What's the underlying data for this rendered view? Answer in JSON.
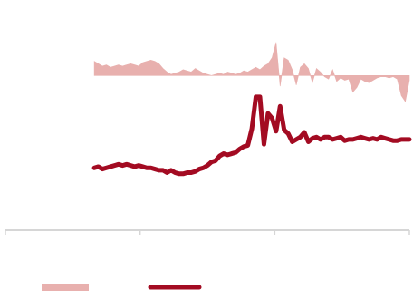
{
  "chart_data": {
    "type": "line",
    "colors": {
      "area": "#e8b0ae",
      "line": "#a30b22",
      "axis": "#d6d6d6"
    },
    "grid": false,
    "legend_position": "bottom-left",
    "x_range": [
      0,
      100
    ],
    "y_range": [
      -10,
      5
    ],
    "x_ticks": [
      0,
      33.33,
      66.67,
      100
    ],
    "tick_labels": [
      "",
      "",
      "",
      ""
    ],
    "series": [
      {
        "type": "area",
        "name": "",
        "x": [
          22,
          23,
          24,
          25,
          26,
          27,
          28,
          29,
          30,
          31,
          32,
          33,
          34,
          35,
          36,
          37,
          38,
          39,
          40,
          41,
          42,
          43,
          44,
          45,
          46,
          47,
          48,
          49,
          50,
          51,
          52,
          53,
          54,
          55,
          56,
          57,
          58,
          59,
          60,
          61,
          62,
          63,
          64,
          65,
          66,
          67,
          68,
          69,
          70,
          71,
          72,
          73,
          74,
          75,
          76,
          77,
          78,
          79,
          80,
          81,
          82,
          83,
          84,
          85,
          86,
          87,
          88,
          89,
          90,
          91,
          92,
          93,
          94,
          95,
          96,
          97,
          98,
          99,
          100
        ],
        "y": [
          1.2,
          1.0,
          0.8,
          0.9,
          0.7,
          0.8,
          0.9,
          0.8,
          0.9,
          1.0,
          0.9,
          0.8,
          1.1,
          1.2,
          1.3,
          1.2,
          1.0,
          0.6,
          0.3,
          0.1,
          0.2,
          0.3,
          0.5,
          0.4,
          0.3,
          0.6,
          0.4,
          0.2,
          0.1,
          0.0,
          0.1,
          0.2,
          0.1,
          0.3,
          0.2,
          0.1,
          0.2,
          0.4,
          0.3,
          0.5,
          0.7,
          0.5,
          0.8,
          1.0,
          1.5,
          2.8,
          -0.9,
          1.5,
          1.3,
          0.5,
          -0.8,
          0.7,
          1.0,
          0.6,
          -0.6,
          0.6,
          0.3,
          -0.1,
          -0.3,
          0.5,
          -0.5,
          -0.2,
          -0.4,
          -0.3,
          -1.4,
          -1.0,
          -0.3,
          -0.5,
          -0.6,
          -0.4,
          -0.2,
          -0.1,
          -0.1,
          -0.2,
          -0.1,
          -0.3,
          -1.7,
          -2.2,
          -0.4
        ]
      },
      {
        "type": "line",
        "name": "",
        "x": [
          22,
          23,
          24,
          25,
          26,
          27,
          28,
          29,
          30,
          31,
          32,
          33,
          34,
          35,
          36,
          37,
          38,
          39,
          40,
          41,
          42,
          43,
          44,
          45,
          46,
          47,
          48,
          49,
          50,
          51,
          52,
          53,
          54,
          55,
          56,
          57,
          58,
          59,
          60,
          61,
          62,
          63,
          64,
          65,
          66,
          67,
          68,
          69,
          70,
          71,
          72,
          73,
          74,
          75,
          76,
          77,
          78,
          79,
          80,
          81,
          82,
          83,
          84,
          85,
          86,
          87,
          88,
          89,
          90,
          91,
          92,
          93,
          94,
          95,
          96,
          97,
          98,
          99,
          100
        ],
        "y": [
          -7.8,
          -7.7,
          -7.9,
          -7.8,
          -7.7,
          -7.6,
          -7.5,
          -7.6,
          -7.5,
          -7.6,
          -7.7,
          -7.6,
          -7.7,
          -7.8,
          -7.8,
          -7.9,
          -8.0,
          -8.0,
          -8.2,
          -8.0,
          -8.2,
          -8.3,
          -8.3,
          -8.2,
          -8.2,
          -8.1,
          -7.9,
          -7.8,
          -7.6,
          -7.3,
          -7.2,
          -6.8,
          -6.6,
          -6.7,
          -6.6,
          -6.5,
          -6.2,
          -6.0,
          -5.9,
          -4.5,
          -1.8,
          -1.8,
          -5.8,
          -3.2,
          -3.6,
          -4.7,
          -2.6,
          -4.6,
          -4.9,
          -5.6,
          -5.4,
          -5.2,
          -4.8,
          -5.6,
          -5.3,
          -5.2,
          -5.4,
          -5.2,
          -5.2,
          -5.4,
          -5.3,
          -5.2,
          -5.5,
          -5.4,
          -5.4,
          -5.3,
          -5.2,
          -5.3,
          -5.4,
          -5.3,
          -5.4,
          -5.2,
          -5.3,
          -5.4,
          -5.5,
          -5.5,
          -5.4,
          -5.4,
          -5.4
        ]
      }
    ],
    "legend": [
      {
        "kind": "area",
        "label": ""
      },
      {
        "kind": "line",
        "label": ""
      }
    ]
  }
}
